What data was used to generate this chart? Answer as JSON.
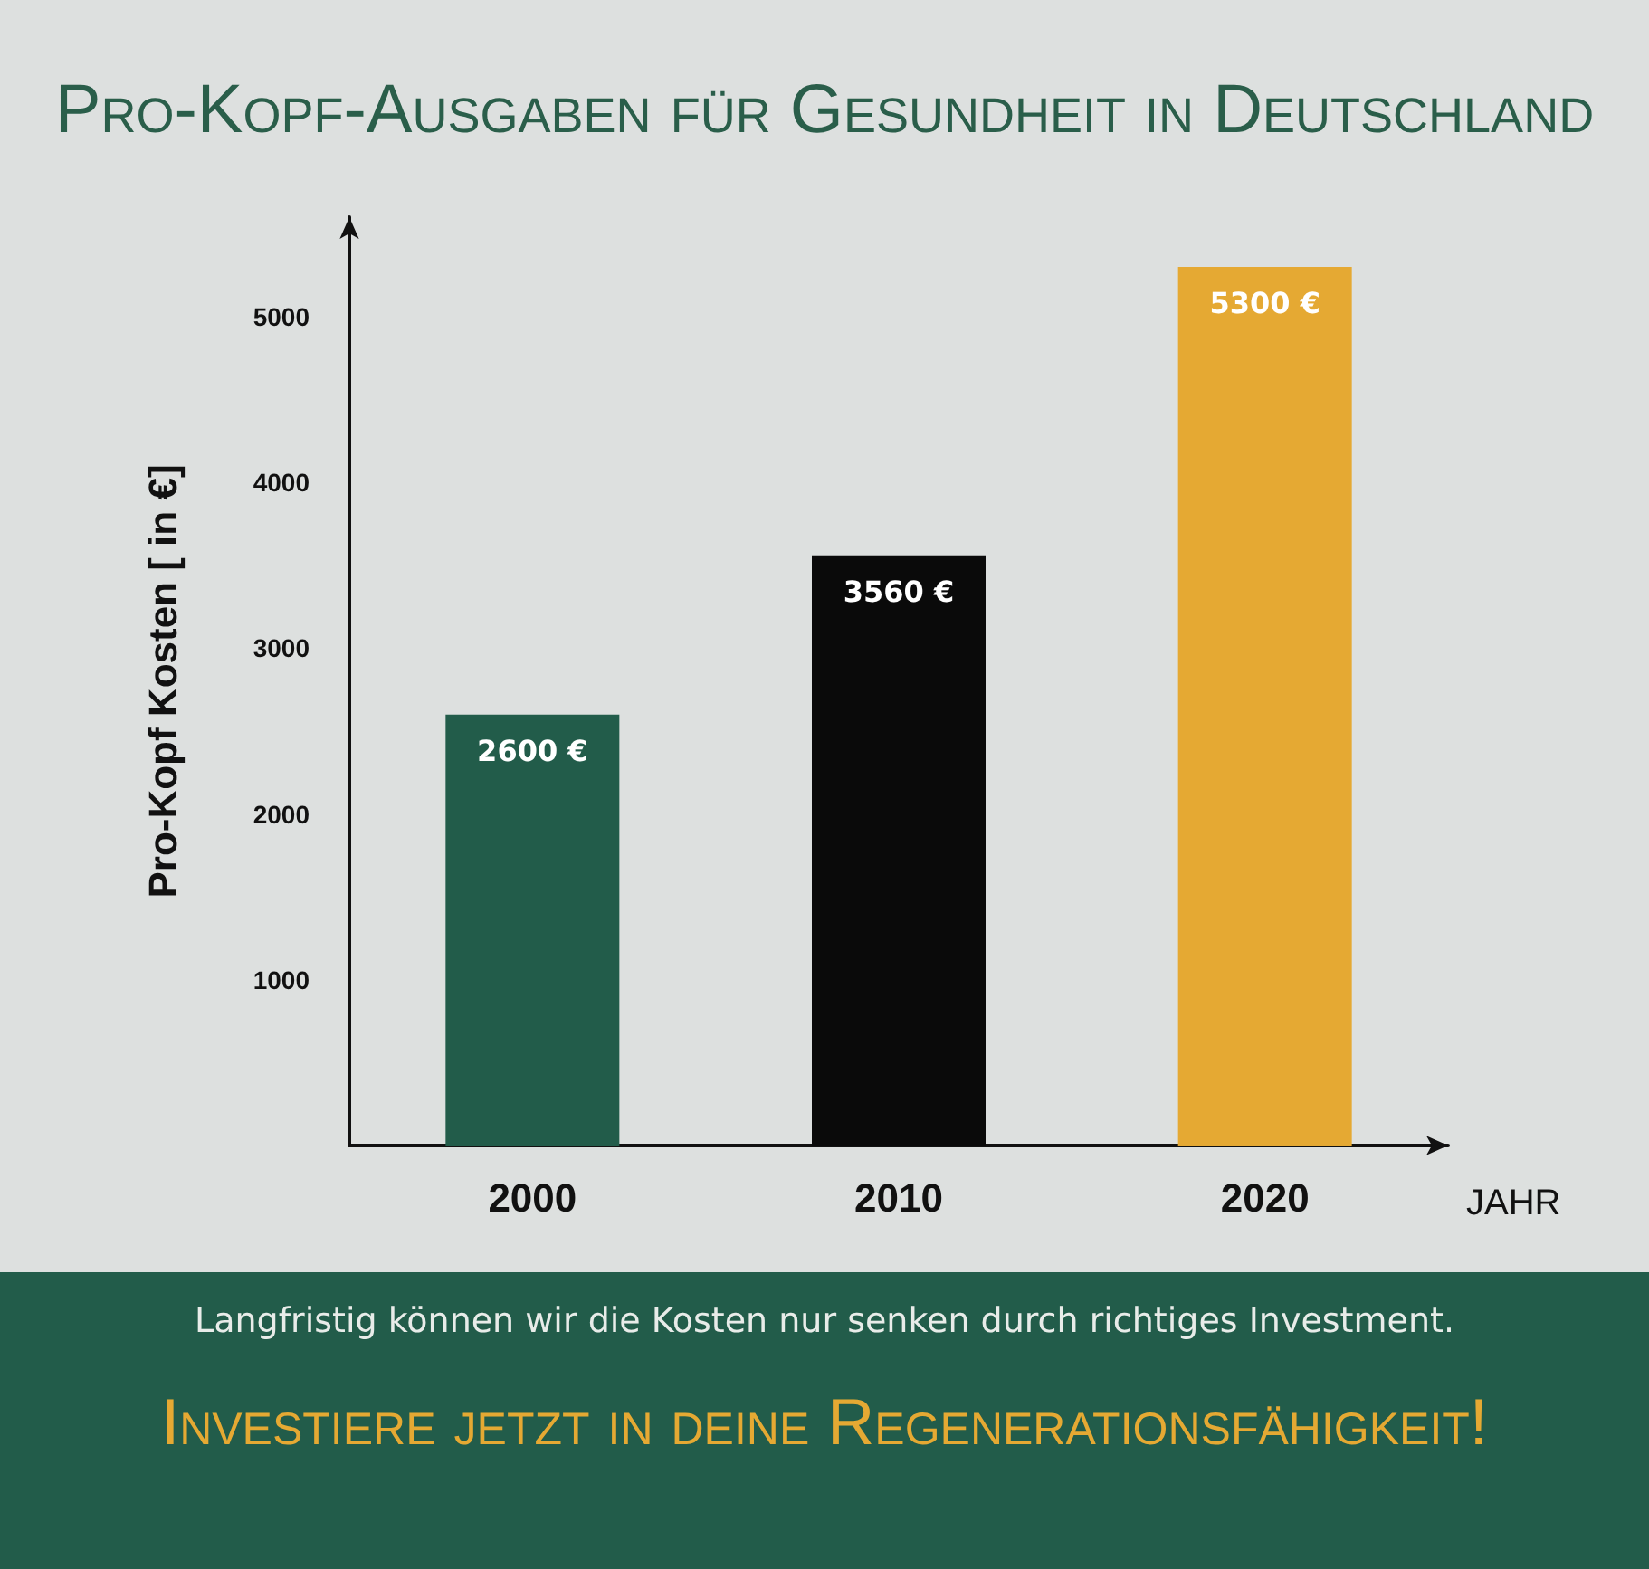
{
  "chart_data": {
    "type": "bar",
    "title": "Pro-Kopf-Ausgaben für Gesundheit in Deutschland",
    "xlabel": "JAHR",
    "ylabel": "Pro-Kopf Kosten [ in €]",
    "categories": [
      "2000",
      "2010",
      "2020"
    ],
    "values": [
      2600,
      3560,
      5300
    ],
    "colors": [
      "#225c4a",
      "#0a0a0a",
      "#e5a933"
    ],
    "value_labels": [
      "2600 €",
      "3560 €",
      "5300 €"
    ],
    "ylim": [
      0,
      5600
    ],
    "yticks": [
      1000,
      2000,
      3000,
      4000,
      5000
    ],
    "annotations": [
      "Langfristig können wir die Kosten nur senken durch richtiges Investment.",
      "Investiere jetzt in deine Regenerationsfähigkeit!"
    ]
  }
}
